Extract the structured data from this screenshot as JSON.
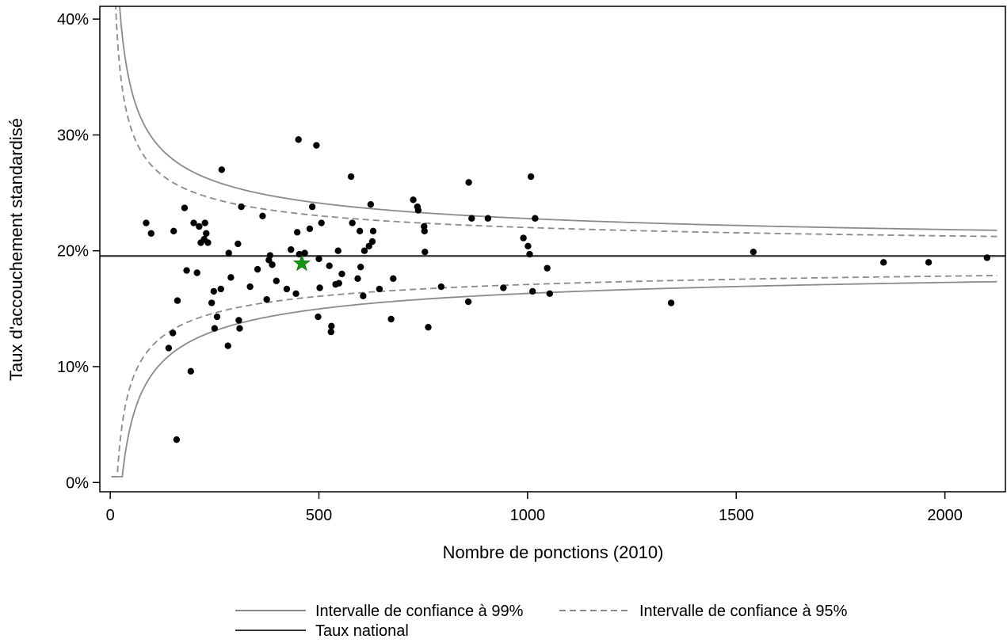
{
  "chart_data": {
    "type": "scatter",
    "title": "",
    "xlabel": "Nombre de ponctions (2010)",
    "ylabel": "Taux d'accouchement standardisé",
    "xlim": [
      -25,
      2145
    ],
    "ylim": [
      -0.8,
      41.1
    ],
    "x_ticks": [
      0,
      500,
      1000,
      1500,
      2000
    ],
    "x_tick_labels": [
      "0",
      "500",
      "1000",
      "1500",
      "2000"
    ],
    "y_ticks": [
      0,
      10,
      20,
      30,
      40
    ],
    "y_tick_labels": [
      "0%",
      "10%",
      "20%",
      "30%",
      "40%"
    ],
    "grid": false,
    "legend_position": "bottom",
    "national_rate": 19.55,
    "confidence_limit_model": {
      "p": 0.1955,
      "z99": 2.576,
      "z95": 1.96,
      "x_start": 3,
      "x_end": 2125
    },
    "highlight_point": {
      "x": 459,
      "y": 18.9,
      "color": "#119911"
    },
    "legend": [
      {
        "label": "Intervalle de confiance à 99%",
        "style": "solid",
        "color": "#8a8a8a"
      },
      {
        "label": "Intervalle de confiance à 95%",
        "style": "dashed",
        "color": "#8a8a8a"
      },
      {
        "label": "Taux national",
        "style": "solid",
        "color": "#333333"
      }
    ],
    "points": [
      {
        "x": 86,
        "y": 22.4
      },
      {
        "x": 98,
        "y": 21.5
      },
      {
        "x": 140,
        "y": 11.6
      },
      {
        "x": 150,
        "y": 12.9
      },
      {
        "x": 152,
        "y": 21.7
      },
      {
        "x": 159,
        "y": 3.7
      },
      {
        "x": 161,
        "y": 15.7
      },
      {
        "x": 178,
        "y": 23.7
      },
      {
        "x": 183,
        "y": 18.3
      },
      {
        "x": 193,
        "y": 9.6
      },
      {
        "x": 200,
        "y": 22.4
      },
      {
        "x": 208,
        "y": 18.1
      },
      {
        "x": 213,
        "y": 22.1
      },
      {
        "x": 217,
        "y": 20.7
      },
      {
        "x": 225,
        "y": 21.0
      },
      {
        "x": 227,
        "y": 22.4
      },
      {
        "x": 230,
        "y": 21.5
      },
      {
        "x": 234,
        "y": 20.7
      },
      {
        "x": 243,
        "y": 15.5
      },
      {
        "x": 248,
        "y": 16.5
      },
      {
        "x": 250,
        "y": 13.3
      },
      {
        "x": 256,
        "y": 14.3
      },
      {
        "x": 265,
        "y": 16.7
      },
      {
        "x": 267,
        "y": 27.0
      },
      {
        "x": 282,
        "y": 11.8
      },
      {
        "x": 284,
        "y": 19.8
      },
      {
        "x": 289,
        "y": 17.7
      },
      {
        "x": 306,
        "y": 20.6
      },
      {
        "x": 308,
        "y": 14.0
      },
      {
        "x": 310,
        "y": 13.3
      },
      {
        "x": 314,
        "y": 23.8
      },
      {
        "x": 335,
        "y": 16.9
      },
      {
        "x": 353,
        "y": 18.4
      },
      {
        "x": 365,
        "y": 23.0
      },
      {
        "x": 375,
        "y": 15.8
      },
      {
        "x": 380,
        "y": 19.2
      },
      {
        "x": 383,
        "y": 19.6
      },
      {
        "x": 388,
        "y": 18.8
      },
      {
        "x": 398,
        "y": 17.4
      },
      {
        "x": 423,
        "y": 16.7
      },
      {
        "x": 433,
        "y": 20.1
      },
      {
        "x": 445,
        "y": 16.3
      },
      {
        "x": 448,
        "y": 21.6
      },
      {
        "x": 451,
        "y": 29.6
      },
      {
        "x": 453,
        "y": 19.7
      },
      {
        "x": 466,
        "y": 19.8
      },
      {
        "x": 478,
        "y": 21.9
      },
      {
        "x": 484,
        "y": 23.8
      },
      {
        "x": 494,
        "y": 29.1
      },
      {
        "x": 498,
        "y": 14.3
      },
      {
        "x": 500,
        "y": 19.3
      },
      {
        "x": 502,
        "y": 16.8
      },
      {
        "x": 506,
        "y": 22.4
      },
      {
        "x": 525,
        "y": 18.7
      },
      {
        "x": 529,
        "y": 13.0
      },
      {
        "x": 530,
        "y": 13.5
      },
      {
        "x": 540,
        "y": 17.1
      },
      {
        "x": 546,
        "y": 20.0
      },
      {
        "x": 548,
        "y": 17.2
      },
      {
        "x": 555,
        "y": 18.0
      },
      {
        "x": 577,
        "y": 26.4
      },
      {
        "x": 580,
        "y": 22.4
      },
      {
        "x": 593,
        "y": 17.6
      },
      {
        "x": 598,
        "y": 21.7
      },
      {
        "x": 600,
        "y": 18.6
      },
      {
        "x": 606,
        "y": 16.1
      },
      {
        "x": 609,
        "y": 20.0
      },
      {
        "x": 620,
        "y": 20.4
      },
      {
        "x": 624,
        "y": 24.0
      },
      {
        "x": 628,
        "y": 20.8
      },
      {
        "x": 630,
        "y": 21.7
      },
      {
        "x": 645,
        "y": 16.7
      },
      {
        "x": 673,
        "y": 14.1
      },
      {
        "x": 678,
        "y": 17.6
      },
      {
        "x": 726,
        "y": 24.4
      },
      {
        "x": 736,
        "y": 23.8
      },
      {
        "x": 738,
        "y": 23.5
      },
      {
        "x": 752,
        "y": 22.1
      },
      {
        "x": 753,
        "y": 21.7
      },
      {
        "x": 754,
        "y": 19.9
      },
      {
        "x": 762,
        "y": 13.4
      },
      {
        "x": 793,
        "y": 16.9
      },
      {
        "x": 858,
        "y": 15.6
      },
      {
        "x": 859,
        "y": 25.9
      },
      {
        "x": 866,
        "y": 22.8
      },
      {
        "x": 905,
        "y": 22.8
      },
      {
        "x": 942,
        "y": 16.8
      },
      {
        "x": 990,
        "y": 21.1
      },
      {
        "x": 1001,
        "y": 20.4
      },
      {
        "x": 1005,
        "y": 19.7
      },
      {
        "x": 1008,
        "y": 26.4
      },
      {
        "x": 1012,
        "y": 16.5
      },
      {
        "x": 1018,
        "y": 22.8
      },
      {
        "x": 1047,
        "y": 18.5
      },
      {
        "x": 1053,
        "y": 16.3
      },
      {
        "x": 1344,
        "y": 15.5
      },
      {
        "x": 1541,
        "y": 19.9
      },
      {
        "x": 1853,
        "y": 19.0
      },
      {
        "x": 1961,
        "y": 19.0
      },
      {
        "x": 2101,
        "y": 19.4
      }
    ]
  }
}
